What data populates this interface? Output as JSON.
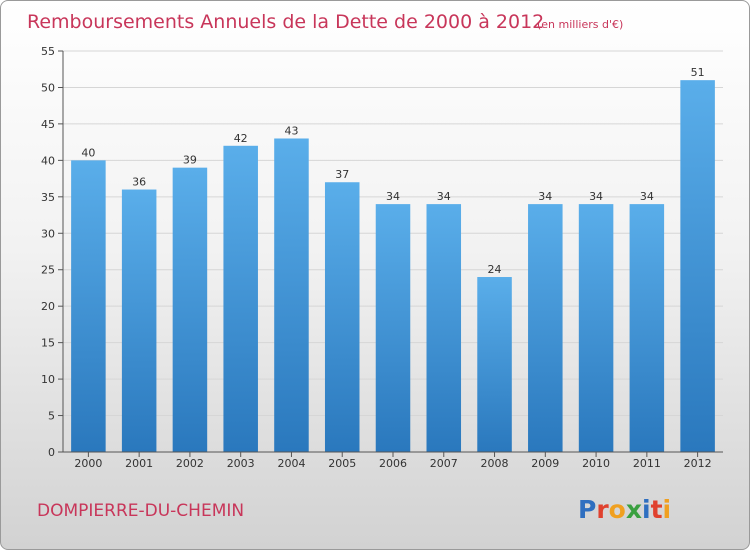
{
  "header": {
    "title": "Remboursements Annuels de la Dette de 2000 à 2012",
    "unit": "(en milliers d'€)"
  },
  "footer": {
    "commune": "DOMPIERRE-DU-CHEMIN",
    "logo_letters": [
      {
        "char": "P",
        "color": "#2f6fc0"
      },
      {
        "char": "r",
        "color": "#e0412e"
      },
      {
        "char": "o",
        "color": "#f0a020"
      },
      {
        "char": "x",
        "color": "#3aa040"
      },
      {
        "char": "i",
        "color": "#2f6fc0"
      },
      {
        "char": "t",
        "color": "#e0412e"
      },
      {
        "char": "i",
        "color": "#f0a020"
      }
    ]
  },
  "chart_data": {
    "type": "bar",
    "title": "Remboursements Annuels de la Dette de 2000 à 2012",
    "categories": [
      "2000",
      "2001",
      "2002",
      "2003",
      "2004",
      "2005",
      "2006",
      "2007",
      "2008",
      "2009",
      "2010",
      "2011",
      "2012"
    ],
    "values": [
      40,
      36,
      39,
      42,
      43,
      37,
      34,
      34,
      24,
      34,
      34,
      34,
      51
    ],
    "ylim": [
      0,
      55
    ],
    "yticks": [
      0,
      5,
      10,
      15,
      20,
      25,
      30,
      35,
      40,
      45,
      50,
      55
    ],
    "grid": "horizontal",
    "bar_color_top": "#5aaeea",
    "bar_color_bottom": "#2a78bd"
  }
}
